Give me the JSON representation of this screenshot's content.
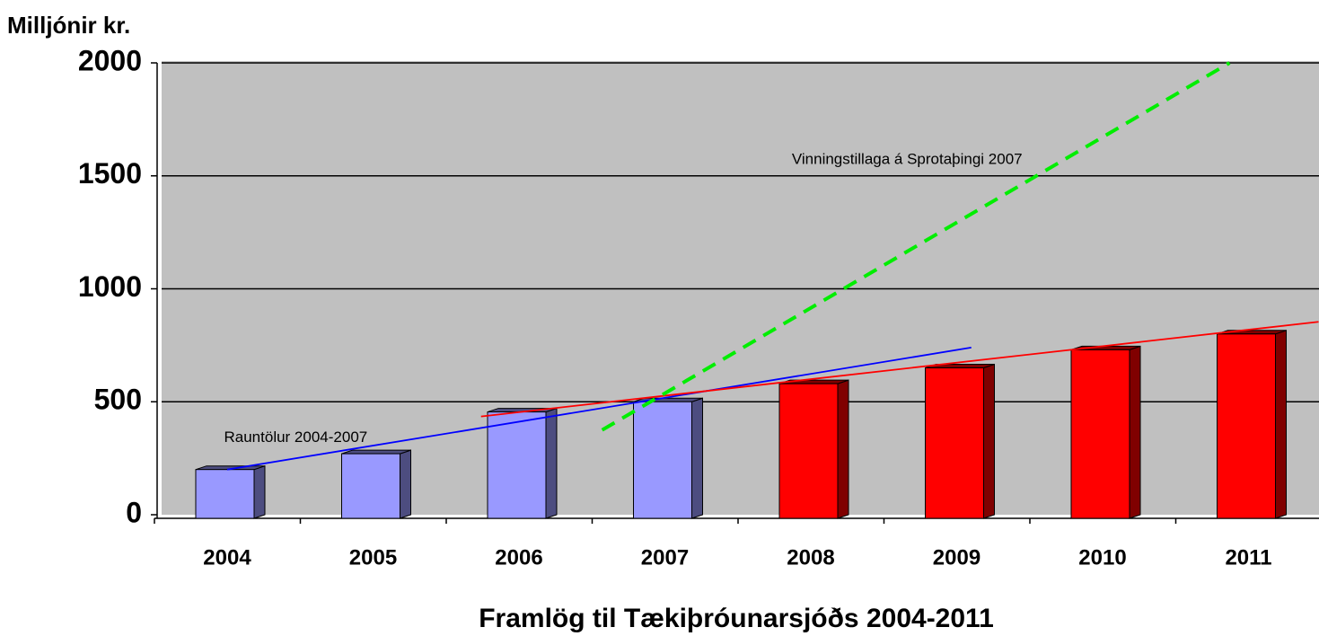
{
  "chart_data": {
    "type": "bar",
    "title": "Framlög til Tækiþróunarsjóðs 2004-2011",
    "y_label": "Milljónir kr.",
    "categories": [
      "2004",
      "2005",
      "2006",
      "2007",
      "2008",
      "2009",
      "2010",
      "2011"
    ],
    "values": [
      200,
      270,
      455,
      500,
      580,
      650,
      730,
      800
    ],
    "colors": [
      "#9999ff",
      "#9999ff",
      "#9999ff",
      "#9999ff",
      "#ff0000",
      "#ff0000",
      "#ff0000",
      "#ff0000"
    ],
    "side_colors": [
      "#4d4d80",
      "#4d4d80",
      "#4d4d80",
      "#4d4d80",
      "#800000",
      "#800000",
      "#800000",
      "#800000"
    ],
    "ylim": [
      0,
      2000
    ],
    "yticks": [
      0,
      500,
      1000,
      1500,
      2000
    ],
    "grid": true,
    "trend_lines": [
      {
        "color": "#0000ff",
        "dashed": false,
        "x": [
          0,
          5.1
        ],
        "y": [
          200,
          740
        ]
      },
      {
        "color": "#ff0000",
        "dashed": false,
        "x": [
          1.74,
          7.48
        ],
        "y": [
          435,
          854
        ]
      },
      {
        "color": "#00ee00",
        "dashed": true,
        "x": [
          2.57,
          6.87
        ],
        "y": [
          375,
          2000
        ]
      }
    ],
    "annotations": [
      {
        "text": "Vinningstillaga á Sprotaþingi 2007",
        "x": 4.66,
        "y": 1570
      },
      {
        "text": "Rauntölur 2004-2007",
        "x": 0.47,
        "y": 340
      }
    ]
  }
}
